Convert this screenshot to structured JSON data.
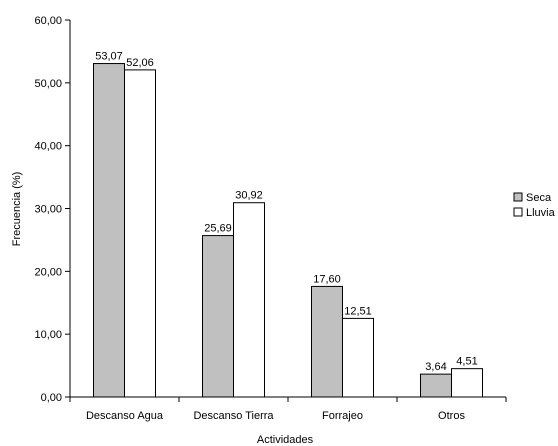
{
  "chart_data": {
    "type": "bar",
    "title": "",
    "xlabel": "Actividades",
    "ylabel": "Frecuencia (%)",
    "ylim": [
      0,
      60
    ],
    "yticks": [
      "0,00",
      "10,00",
      "20,00",
      "30,00",
      "40,00",
      "50,00",
      "60,00"
    ],
    "grid": false,
    "legend_position": "right",
    "categories": [
      "Descanso Agua",
      "Descanso Tierra",
      "Forrajeo",
      "Otros"
    ],
    "series": [
      {
        "name": "Seca",
        "color": "#c0c0c0",
        "values": [
          53.07,
          25.69,
          17.6,
          3.64
        ],
        "labels": [
          "53,07",
          "25,69",
          "17,60",
          "3,64"
        ]
      },
      {
        "name": "Lluvia",
        "color": "#ffffff",
        "values": [
          52.06,
          30.92,
          12.51,
          4.51
        ],
        "labels": [
          "52,06",
          "30,92",
          "12,51",
          "4,51"
        ]
      }
    ]
  }
}
